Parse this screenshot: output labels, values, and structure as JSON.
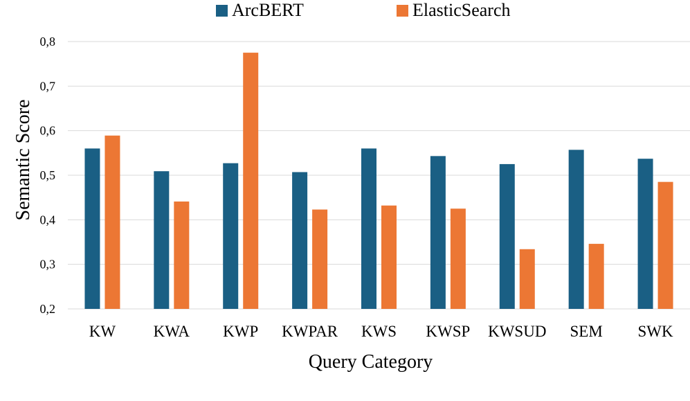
{
  "chart_data": {
    "type": "bar",
    "categories": [
      "KW",
      "KWA",
      "KWP",
      "KWPAR",
      "KWS",
      "KWSP",
      "KWSUD",
      "SEM",
      "SWK"
    ],
    "series": [
      {
        "name": "ArcBERT",
        "color": "#1a5f84",
        "values": [
          0.56,
          0.509,
          0.527,
          0.507,
          0.56,
          0.543,
          0.525,
          0.557,
          0.537
        ]
      },
      {
        "name": "ElasticSearch",
        "color": "#ec7734",
        "values": [
          0.589,
          0.441,
          0.775,
          0.423,
          0.432,
          0.425,
          0.334,
          0.346,
          0.485
        ]
      }
    ],
    "xlabel": "Query Category",
    "ylabel": "Semantic Score",
    "ylim": [
      0.2,
      0.8
    ],
    "yticks": [
      "0,2",
      "0,3",
      "0,4",
      "0,5",
      "0,6",
      "0,7",
      "0,8"
    ],
    "ytick_values": [
      0.2,
      0.3,
      0.4,
      0.5,
      0.6,
      0.7,
      0.8
    ],
    "grid": "horizontal",
    "gridline_color": "#d9d9d9",
    "legend_position": "top-center"
  }
}
